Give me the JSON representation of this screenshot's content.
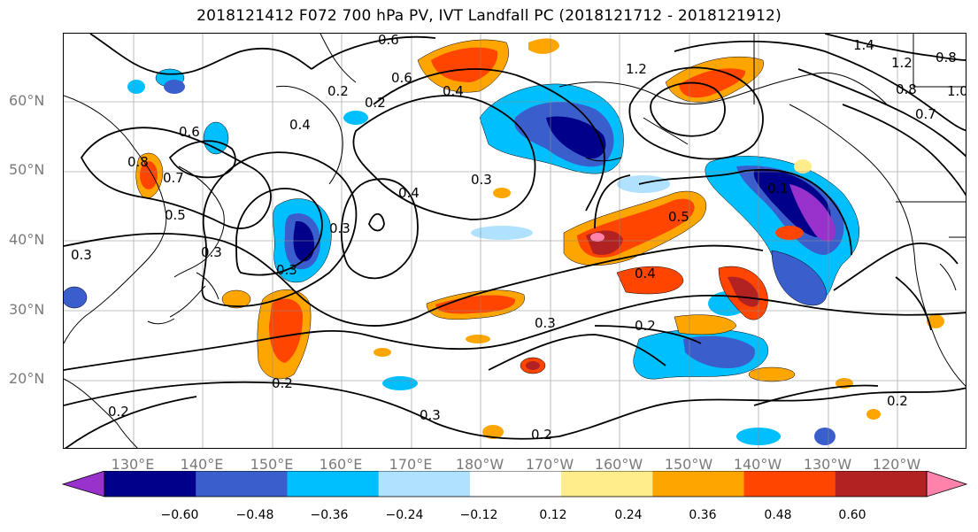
{
  "title": "2018121412 F072 700 hPa PV, IVT Landfall PC (2018121712 - 2018121912)",
  "lat_labels": [
    "60°N",
    "50°N",
    "40°N",
    "30°N",
    "20°N"
  ],
  "lon_labels": [
    "130°E",
    "140°E",
    "150°E",
    "160°E",
    "170°E",
    "180°W",
    "170°W",
    "160°W",
    "150°W",
    "140°W",
    "130°W",
    "120°W"
  ],
  "contour_labels": [
    "0.6",
    "0.6",
    "0.2",
    "0.2",
    "0.4",
    "1.2",
    "1.4",
    "1.2",
    "0.8",
    "0.8",
    "0.7",
    "1.0",
    "0.6",
    "0.8",
    "0.7",
    "0.5",
    "0.4",
    "0.3",
    "0.4",
    "0.5",
    "0.3",
    "0.3",
    "0.3",
    "0.3",
    "0.2",
    "0.4",
    "0.1",
    "0.2",
    "0.3",
    "0.2",
    "0.2",
    "0.2",
    "0.3"
  ],
  "colorbar": {
    "colors": [
      "#9932cc",
      "#00008b",
      "#3a5fcd",
      "#00bfff",
      "#b0e2ff",
      "#ffffff",
      "#ffec8b",
      "#ffa500",
      "#ff4500",
      "#b22222",
      "#ff82ab"
    ],
    "tick_labels": [
      "−0.60",
      "−0.48",
      "−0.36",
      "−0.24",
      "−0.12",
      "0.12",
      "0.24",
      "0.36",
      "0.48",
      "0.60"
    ]
  }
}
